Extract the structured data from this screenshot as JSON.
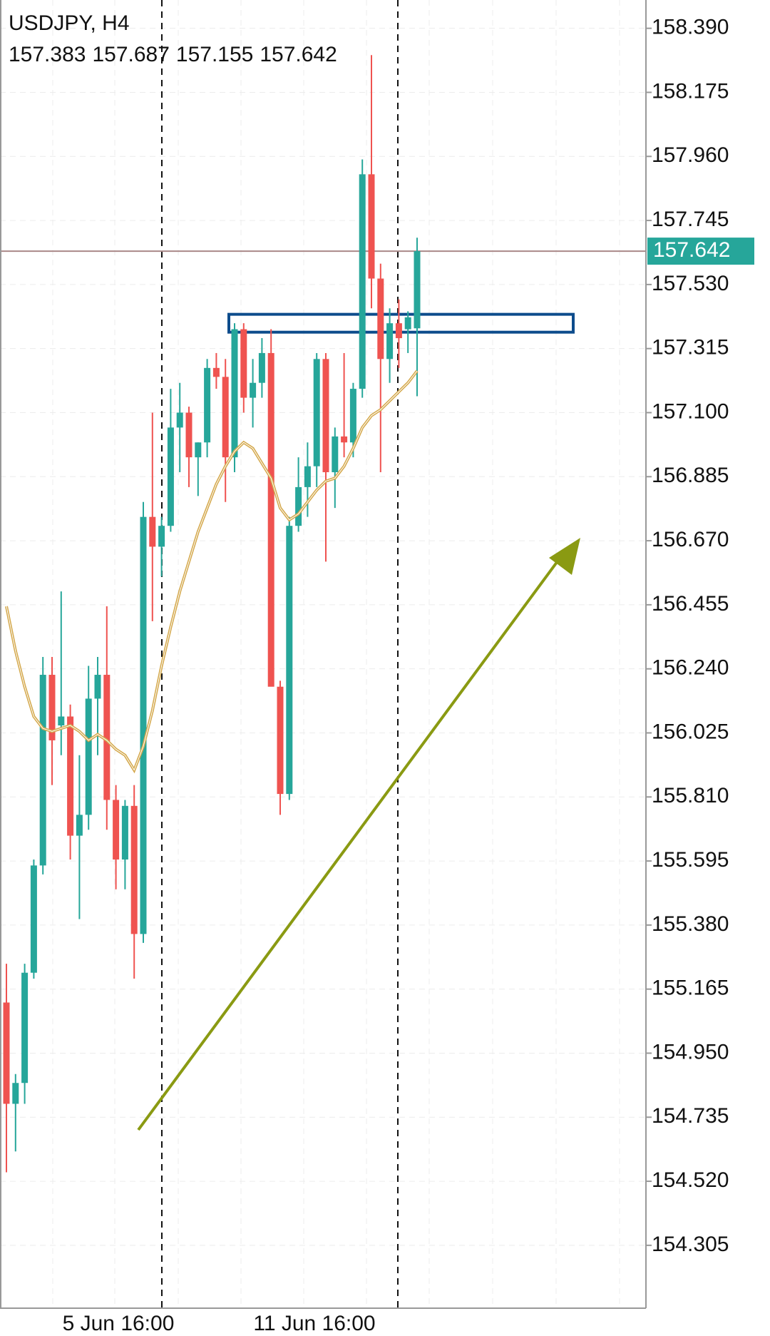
{
  "chart_data": {
    "type": "candlestick",
    "title": "USDJPY, H4",
    "ohlc": {
      "open": [
        155.12,
        154.78,
        154.85,
        155.22,
        155.58,
        156.22,
        156.05,
        156.08,
        155.68,
        155.75,
        156.14,
        156.22,
        155.8,
        155.6,
        155.78,
        155.35,
        156.75,
        156.65,
        156.72,
        157.05,
        157.1,
        156.95,
        157.0,
        157.25,
        157.22,
        156.95,
        157.38,
        157.15,
        157.2,
        157.3,
        156.18,
        155.82,
        156.72,
        156.85,
        156.92,
        157.28,
        156.9,
        157.02,
        157.0,
        157.18,
        157.9,
        157.55,
        157.28,
        157.4,
        157.38,
        157.383
      ],
      "high": [
        155.25,
        154.88,
        155.25,
        155.6,
        156.28,
        156.28,
        156.5,
        156.12,
        155.95,
        156.25,
        156.28,
        156.45,
        155.85,
        155.8,
        155.85,
        156.8,
        157.1,
        156.75,
        157.18,
        157.2,
        157.12,
        157.0,
        157.28,
        157.3,
        157.28,
        157.4,
        157.4,
        157.28,
        157.35,
        157.38,
        156.2,
        156.75,
        156.95,
        157.0,
        157.3,
        157.3,
        157.05,
        157.3,
        157.2,
        157.95,
        158.3,
        157.6,
        157.45,
        157.48,
        157.44,
        157.687
      ],
      "low": [
        154.55,
        154.62,
        154.78,
        155.2,
        155.55,
        155.85,
        155.95,
        155.6,
        155.4,
        155.7,
        155.95,
        155.7,
        155.5,
        155.5,
        155.2,
        155.32,
        156.4,
        156.55,
        156.7,
        156.9,
        156.85,
        156.82,
        156.95,
        157.18,
        156.8,
        156.9,
        157.1,
        157.05,
        157.15,
        156.2,
        155.75,
        155.8,
        156.7,
        156.75,
        156.85,
        156.6,
        156.78,
        156.95,
        156.95,
        157.15,
        157.45,
        156.9,
        157.2,
        157.25,
        157.3,
        157.155
      ],
      "close": [
        154.78,
        154.85,
        155.22,
        155.58,
        156.22,
        156.0,
        156.08,
        155.68,
        155.75,
        156.14,
        156.22,
        155.8,
        155.6,
        155.78,
        155.35,
        156.75,
        156.65,
        156.72,
        157.05,
        157.1,
        156.95,
        157.0,
        157.25,
        157.22,
        156.95,
        157.38,
        157.15,
        157.2,
        157.3,
        156.18,
        155.82,
        156.72,
        156.85,
        156.92,
        157.28,
        156.9,
        157.02,
        157.0,
        157.18,
        157.9,
        157.55,
        157.28,
        157.4,
        157.35,
        157.42,
        157.642
      ]
    },
    "ma": [
      156.45,
      156.3,
      156.18,
      156.08,
      156.04,
      156.03,
      156.04,
      156.05,
      156.03,
      156.0,
      156.02,
      156.0,
      155.97,
      155.95,
      155.9,
      155.98,
      156.1,
      156.25,
      156.38,
      156.5,
      156.6,
      156.7,
      156.78,
      156.86,
      156.92,
      156.97,
      157.0,
      156.98,
      156.93,
      156.88,
      156.78,
      156.74,
      156.76,
      156.8,
      156.84,
      156.87,
      156.88,
      156.92,
      156.98,
      157.05,
      157.09,
      157.11,
      157.14,
      157.17,
      157.2,
      157.24
    ],
    "up_color": "#26a69a",
    "down_color": "#ef5350",
    "ma_color": "#d4a84b",
    "resistance_zone": {
      "low": 157.37,
      "high": 157.43,
      "color": "#0d4c8c"
    },
    "x_labels": [
      "5 Jun 16:00",
      "11 Jun 16:00"
    ],
    "ylim": [
      154.094,
      158.485
    ],
    "yticks": [
      {
        "value": 158.39,
        "label": "158.390"
      },
      158.175,
      {
        "value": 157.96,
        "label": "157.960"
      },
      157.745,
      {
        "value": 157.53,
        "label": "157.530"
      },
      157.315,
      {
        "value": 157.1,
        "label": "157.100"
      },
      156.885,
      {
        "value": 156.67,
        "label": "156.670"
      },
      156.455,
      {
        "value": 156.24,
        "label": "156.240"
      },
      156.025,
      {
        "value": 155.81,
        "label": "155.810"
      },
      155.595,
      {
        "value": 155.38,
        "label": "155.380"
      },
      155.165,
      {
        "value": 154.95,
        "label": "154.950"
      },
      154.735,
      {
        "value": 154.52,
        "label": "154.520"
      },
      154.305
    ],
    "grid": true
  }
}
